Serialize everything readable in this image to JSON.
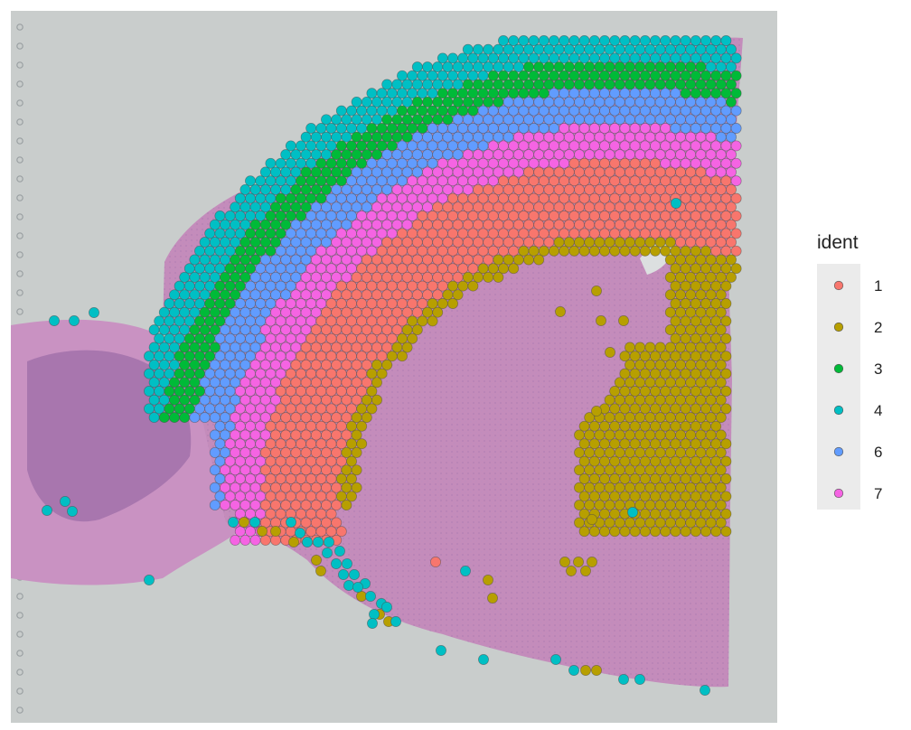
{
  "chart_data": {
    "type": "scatter",
    "title": "",
    "xlabel": "",
    "ylabel": "",
    "grid": false,
    "background": "H&E stained mouse brain tissue section (histology image)",
    "legend": {
      "title": "ident",
      "placement": "right",
      "entries": [
        {
          "label": "1",
          "color": "#F8766D"
        },
        {
          "label": "2",
          "color": "#B79F00"
        },
        {
          "label": "3",
          "color": "#00BA38"
        },
        {
          "label": "4",
          "color": "#00BFC4"
        },
        {
          "label": "6",
          "color": "#619CFF"
        },
        {
          "label": "7",
          "color": "#F564E3"
        }
      ]
    },
    "series": [
      {
        "name": "1",
        "color": "#F8766D",
        "spot_count_approx": 520
      },
      {
        "name": "2",
        "color": "#B79F00",
        "spot_count_approx": 330
      },
      {
        "name": "3",
        "color": "#00BA38",
        "spot_count_approx": 250
      },
      {
        "name": "4",
        "color": "#00BFC4",
        "spot_count_approx": 260
      },
      {
        "name": "6",
        "color": "#619CFF",
        "spot_count_approx": 300
      },
      {
        "name": "7",
        "color": "#F564E3",
        "spot_count_approx": 300
      }
    ]
  }
}
